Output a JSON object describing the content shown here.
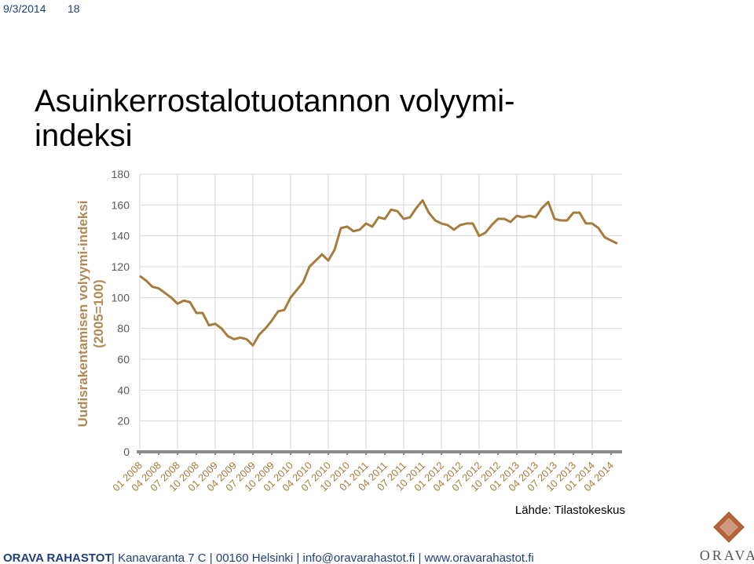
{
  "header": {
    "date": "9/3/2014",
    "page": "18"
  },
  "title_lines": [
    "Asuinkerrostalotuotannon volyymi-",
    "indeksi"
  ],
  "chart_data": {
    "type": "line",
    "ylabel_lines": [
      "Uudisrakentamisen volyymi-indeksi",
      "(2005=100)"
    ],
    "categories": [
      "01 2008",
      null,
      null,
      "04 2008",
      null,
      null,
      "07 2008",
      null,
      null,
      "10 2008",
      null,
      null,
      "01 2009",
      null,
      null,
      "04 2009",
      null,
      null,
      "07 2009",
      null,
      null,
      "10 2009",
      null,
      null,
      "01 2010",
      null,
      null,
      "04 2010",
      null,
      null,
      "07 2010",
      null,
      null,
      "10 2010",
      null,
      null,
      "01 2011",
      null,
      null,
      "04 2011",
      null,
      null,
      "07 2011",
      null,
      null,
      "10 2011",
      null,
      null,
      "01 2012",
      null,
      null,
      "04 2012",
      null,
      null,
      "07 2012",
      null,
      null,
      "10 2012",
      null,
      null,
      "01 2013",
      null,
      null,
      "04 2013",
      null,
      null,
      "07 2013",
      null,
      null,
      "10 2013",
      null,
      null,
      "01 2014",
      null,
      null,
      "04 2014",
      null
    ],
    "series": [
      {
        "name": "Uudisrakentamisen volyymi-indeksi",
        "color": "#a67c3d",
        "values": [
          114,
          111,
          107,
          106,
          103,
          100,
          96,
          98,
          97,
          90,
          90,
          82,
          83,
          80,
          75,
          73,
          74,
          73,
          69,
          76,
          80,
          85,
          91,
          92,
          100,
          105,
          110,
          120,
          124,
          128,
          124,
          131,
          145,
          146,
          143,
          144,
          148,
          146,
          152,
          151,
          157,
          156,
          151,
          152,
          158,
          163,
          155,
          150,
          148,
          147,
          144,
          147,
          148,
          148,
          140,
          142,
          147,
          151,
          151,
          149,
          153,
          152,
          153,
          152,
          158,
          162,
          151,
          150,
          150,
          155,
          155,
          148,
          148,
          145,
          139,
          137,
          135
        ]
      }
    ],
    "ylim": [
      0,
      180
    ],
    "yticks": [
      0,
      20,
      40,
      60,
      80,
      100,
      120,
      140,
      160,
      180
    ],
    "grid": true,
    "source": "Lähde: Tilastokeskus"
  },
  "footer": {
    "brand": "ORAVA RAHASTOT",
    "text": "| Kanavaranta 7 C | 00160 Helsinki | info@oravarahastot.fi | www.oravarahastot.fi",
    "logo_text": "ORAVA"
  }
}
